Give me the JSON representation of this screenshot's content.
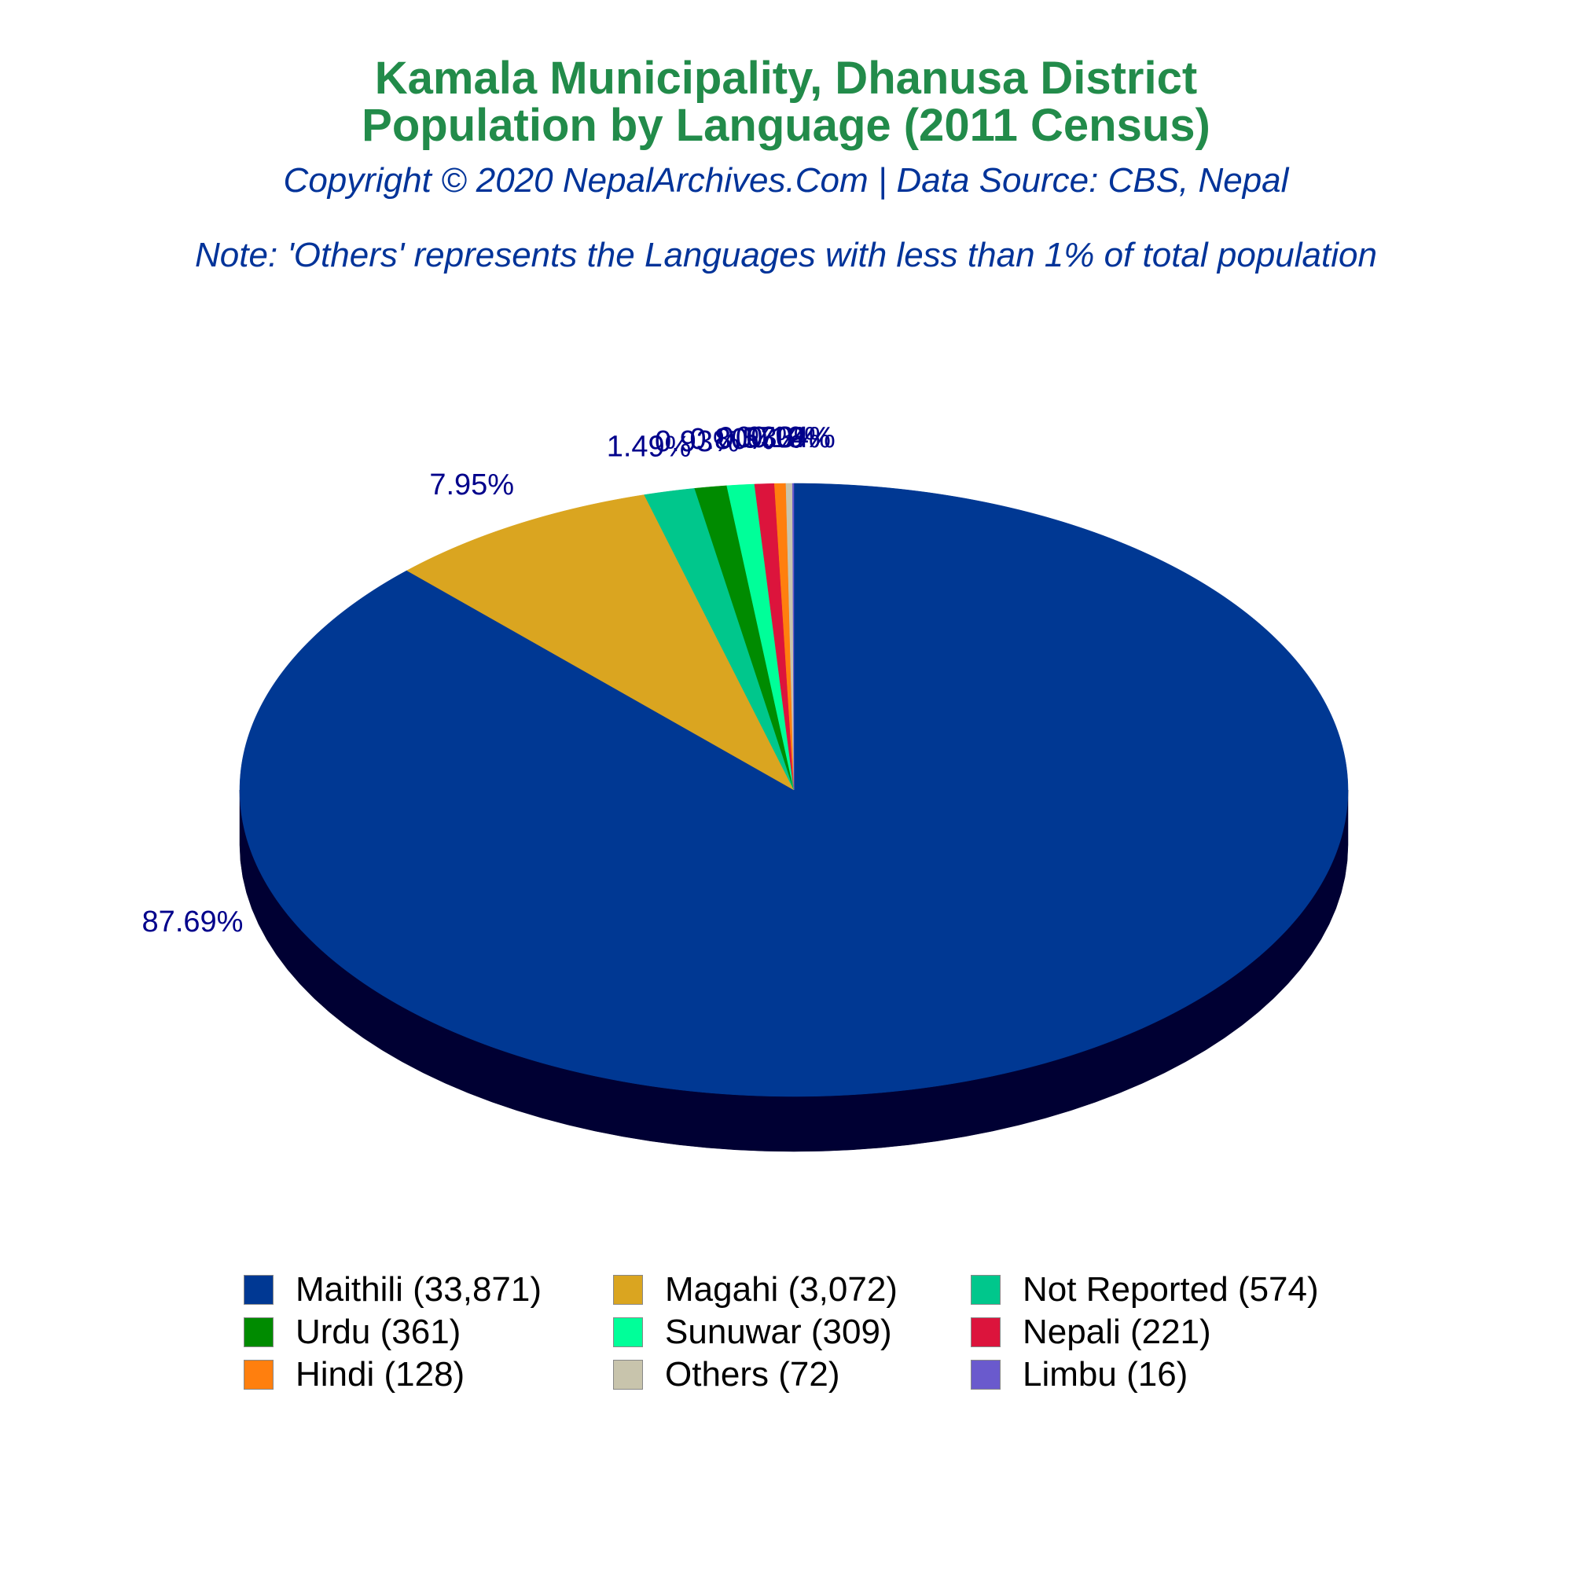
{
  "header": {
    "title_line1": "Kamala Municipality, Dhanusa District",
    "title_line2": "Population by Language (2011 Census)",
    "copyright": "Copyright © 2020 NepalArchives.Com | Data Source: CBS, Nepal",
    "note": "Note: 'Others' represents the Languages with less than 1% of total population"
  },
  "colors": {
    "title": "#228b4a",
    "subtitle": "#003399",
    "pct_label": "#00008b",
    "pie_side": "#000033"
  },
  "chart_data": {
    "type": "pie",
    "style": "3d",
    "start_angle_deg": 90,
    "direction": "clockwise",
    "legend_position": "bottom",
    "slices": [
      {
        "name": "Maithili",
        "value": 33871,
        "pct_label": "87.69%",
        "color": "#003893",
        "legend": "Maithili (33,871)"
      },
      {
        "name": "Magahi",
        "value": 3072,
        "pct_label": "7.95%",
        "color": "#daa520",
        "legend": "Magahi (3,072)"
      },
      {
        "name": "Not Reported",
        "value": 574,
        "pct_label": "1.49%",
        "color": "#00c78c",
        "legend": "Not Reported (574)"
      },
      {
        "name": "Urdu",
        "value": 361,
        "pct_label": "0.93%",
        "color": "#008b00",
        "legend": "Urdu (361)"
      },
      {
        "name": "Sunuwar",
        "value": 309,
        "pct_label": "0.80%",
        "color": "#00ff99",
        "legend": "Sunuwar (309)"
      },
      {
        "name": "Nepali",
        "value": 221,
        "pct_label": "0.57%",
        "color": "#dc143c",
        "legend": "Nepali (221)"
      },
      {
        "name": "Hindi",
        "value": 128,
        "pct_label": "0.33%",
        "color": "#ff7f0e",
        "legend": "Hindi (128)"
      },
      {
        "name": "Others",
        "value": 72,
        "pct_label": "0.19%",
        "color": "#c8c4ac",
        "legend": "Others (72)"
      },
      {
        "name": "Limbu",
        "value": 16,
        "pct_label": "0.04%",
        "color": "#6a5acd",
        "legend": "Limbu (16)"
      }
    ]
  }
}
